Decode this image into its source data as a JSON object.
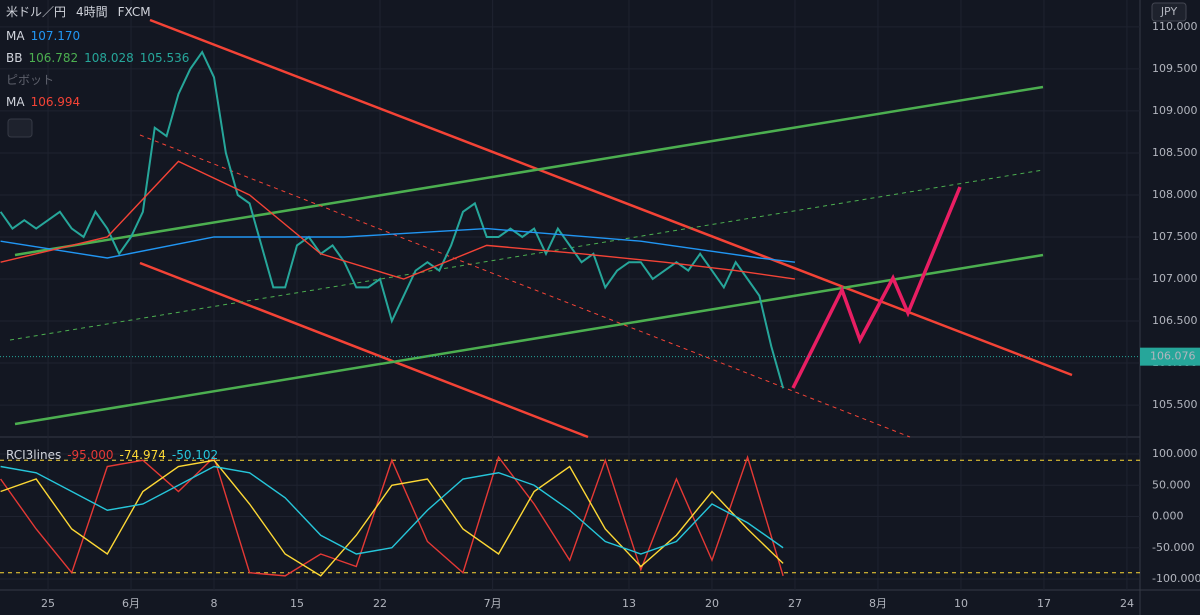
{
  "header": {
    "symbol": "米ドル／円",
    "interval": "4時間",
    "source": "FXCM",
    "currency": "JPY"
  },
  "legend": [
    {
      "name": "MA",
      "values": [
        "107.170"
      ],
      "colors": [
        "#2196f3"
      ]
    },
    {
      "name": "BB",
      "values": [
        "106.782",
        "108.028",
        "105.536"
      ],
      "colors": [
        "#4caf50",
        "#26a69a",
        "#26a69a"
      ]
    },
    {
      "name": "ピボット",
      "values": [],
      "colors": []
    },
    {
      "name": "MA",
      "values": [
        "106.994"
      ],
      "colors": [
        "#f44336"
      ]
    }
  ],
  "chart_data": [
    {
      "type": "line",
      "xlim": [
        -4.05,
        92.1
      ],
      "ylim": [
        105.12,
        110.32
      ],
      "xticks": [
        {
          "value": 0,
          "label": "25"
        },
        {
          "value": 7,
          "label": "6月"
        },
        {
          "value": 14,
          "label": "8"
        },
        {
          "value": 21,
          "label": "15"
        },
        {
          "value": 28,
          "label": "22"
        },
        {
          "value": 37.5,
          "label": "7月"
        },
        {
          "value": 49,
          "label": "13"
        },
        {
          "value": 56,
          "label": "20"
        },
        {
          "value": 63,
          "label": "27"
        },
        {
          "value": 70,
          "label": "8月"
        },
        {
          "value": 77,
          "label": "10"
        },
        {
          "value": 84,
          "label": "17"
        },
        {
          "value": 91,
          "label": "24"
        }
      ],
      "yticks": [
        {
          "value": 105.5,
          "label": "105.500"
        },
        {
          "value": 106,
          "label": "106.000"
        },
        {
          "value": 106.5,
          "label": "106.500"
        },
        {
          "value": 107,
          "label": "107.000"
        },
        {
          "value": 107.5,
          "label": "107.500"
        },
        {
          "value": 108,
          "label": "108.000"
        },
        {
          "value": 108.5,
          "label": "108.500"
        },
        {
          "value": 109,
          "label": "109.000"
        },
        {
          "value": 109.5,
          "label": "109.500"
        },
        {
          "value": 110,
          "label": "110.000"
        }
      ],
      "current_price": 106.076,
      "current_price_label": "106.076",
      "series": [
        {
          "color": "#26a69a",
          "x": [
            -4,
            -3,
            -2,
            -1,
            0,
            1,
            2,
            3,
            4,
            5,
            6,
            7,
            8,
            9,
            10,
            11,
            12,
            13,
            14,
            15,
            16,
            17,
            18,
            19,
            20,
            21,
            22,
            23,
            24,
            25,
            26,
            27,
            28,
            29,
            30,
            31,
            32,
            33,
            34,
            35,
            36,
            37,
            38,
            39,
            40,
            41,
            42,
            43,
            44,
            45,
            46,
            47,
            48,
            49,
            50,
            51,
            52,
            53,
            54,
            55,
            56,
            57,
            58,
            59,
            60,
            61,
            62
          ],
          "values": [
            107.8,
            107.6,
            107.7,
            107.6,
            107.7,
            107.8,
            107.6,
            107.5,
            107.8,
            107.6,
            107.3,
            107.5,
            107.8,
            108.8,
            108.7,
            109.2,
            109.5,
            109.7,
            109.4,
            108.5,
            108.0,
            107.9,
            107.4,
            106.9,
            106.9,
            107.4,
            107.5,
            107.3,
            107.4,
            107.2,
            106.9,
            106.9,
            107.0,
            106.5,
            106.8,
            107.1,
            107.2,
            107.1,
            107.4,
            107.8,
            107.9,
            107.5,
            107.5,
            107.6,
            107.5,
            107.6,
            107.3,
            107.6,
            107.4,
            107.2,
            107.3,
            106.9,
            107.1,
            107.2,
            107.2,
            107.0,
            107.1,
            107.2,
            107.1,
            107.3,
            107.1,
            106.9,
            107.2,
            107.0,
            106.8,
            106.2,
            105.7
          ]
        },
        {
          "color": "#2196f3",
          "x": [
            -4,
            5,
            14,
            25,
            37,
            50,
            60,
            63
          ],
          "values": [
            107.45,
            107.25,
            107.5,
            107.5,
            107.6,
            107.45,
            107.25,
            107.2
          ]
        },
        {
          "color": "#f44336",
          "x": [
            -4,
            5,
            11,
            17,
            23,
            30,
            37,
            45,
            52,
            58,
            63
          ],
          "values": [
            107.2,
            107.5,
            108.4,
            108.0,
            107.3,
            107.0,
            107.4,
            107.3,
            107.2,
            107.1,
            107.0
          ]
        }
      ]
    },
    {
      "type": "line",
      "title": "RCI3lines",
      "legend_values": [
        "-95.000",
        "-74.974",
        "-50.102"
      ],
      "xlim": [
        -4.05,
        92.1
      ],
      "ylim": [
        -117.6,
        127.2
      ],
      "yticks": [
        {
          "value": 100,
          "label": "100.000"
        },
        {
          "value": 50,
          "label": "50.000"
        },
        {
          "value": 0,
          "label": "0.000"
        },
        {
          "value": -50,
          "label": "-50.000"
        },
        {
          "value": -100,
          "label": "-100.000"
        }
      ],
      "levels": [
        90,
        -90
      ],
      "series": [
        {
          "color": "#e53935",
          "x": [
            -4,
            -1,
            2,
            5,
            8,
            11,
            14,
            17,
            20,
            23,
            26,
            29,
            32,
            35,
            38,
            41,
            44,
            47,
            50,
            53,
            56,
            59,
            62
          ],
          "values": [
            60,
            -20,
            -90,
            80,
            90,
            40,
            95,
            -90,
            -95,
            -60,
            -80,
            90,
            -40,
            -90,
            95,
            20,
            -70,
            90,
            -85,
            60,
            -70,
            95,
            -95
          ]
        },
        {
          "color": "#fdd835",
          "x": [
            -4,
            -1,
            2,
            5,
            8,
            11,
            14,
            17,
            20,
            23,
            26,
            29,
            32,
            35,
            38,
            41,
            44,
            47,
            50,
            53,
            56,
            59,
            62
          ],
          "values": [
            40,
            60,
            -20,
            -60,
            40,
            80,
            90,
            20,
            -60,
            -95,
            -30,
            50,
            60,
            -20,
            -60,
            40,
            80,
            -20,
            -80,
            -30,
            40,
            -20,
            -75
          ]
        },
        {
          "color": "#26c6da",
          "x": [
            -4,
            -1,
            2,
            5,
            8,
            11,
            14,
            17,
            20,
            23,
            26,
            29,
            32,
            35,
            38,
            41,
            44,
            47,
            50,
            53,
            56,
            59,
            62
          ],
          "values": [
            80,
            70,
            40,
            10,
            20,
            50,
            80,
            70,
            30,
            -30,
            -60,
            -50,
            10,
            60,
            70,
            50,
            10,
            -40,
            -60,
            -40,
            20,
            -10,
            -50
          ]
        }
      ]
    }
  ]
}
